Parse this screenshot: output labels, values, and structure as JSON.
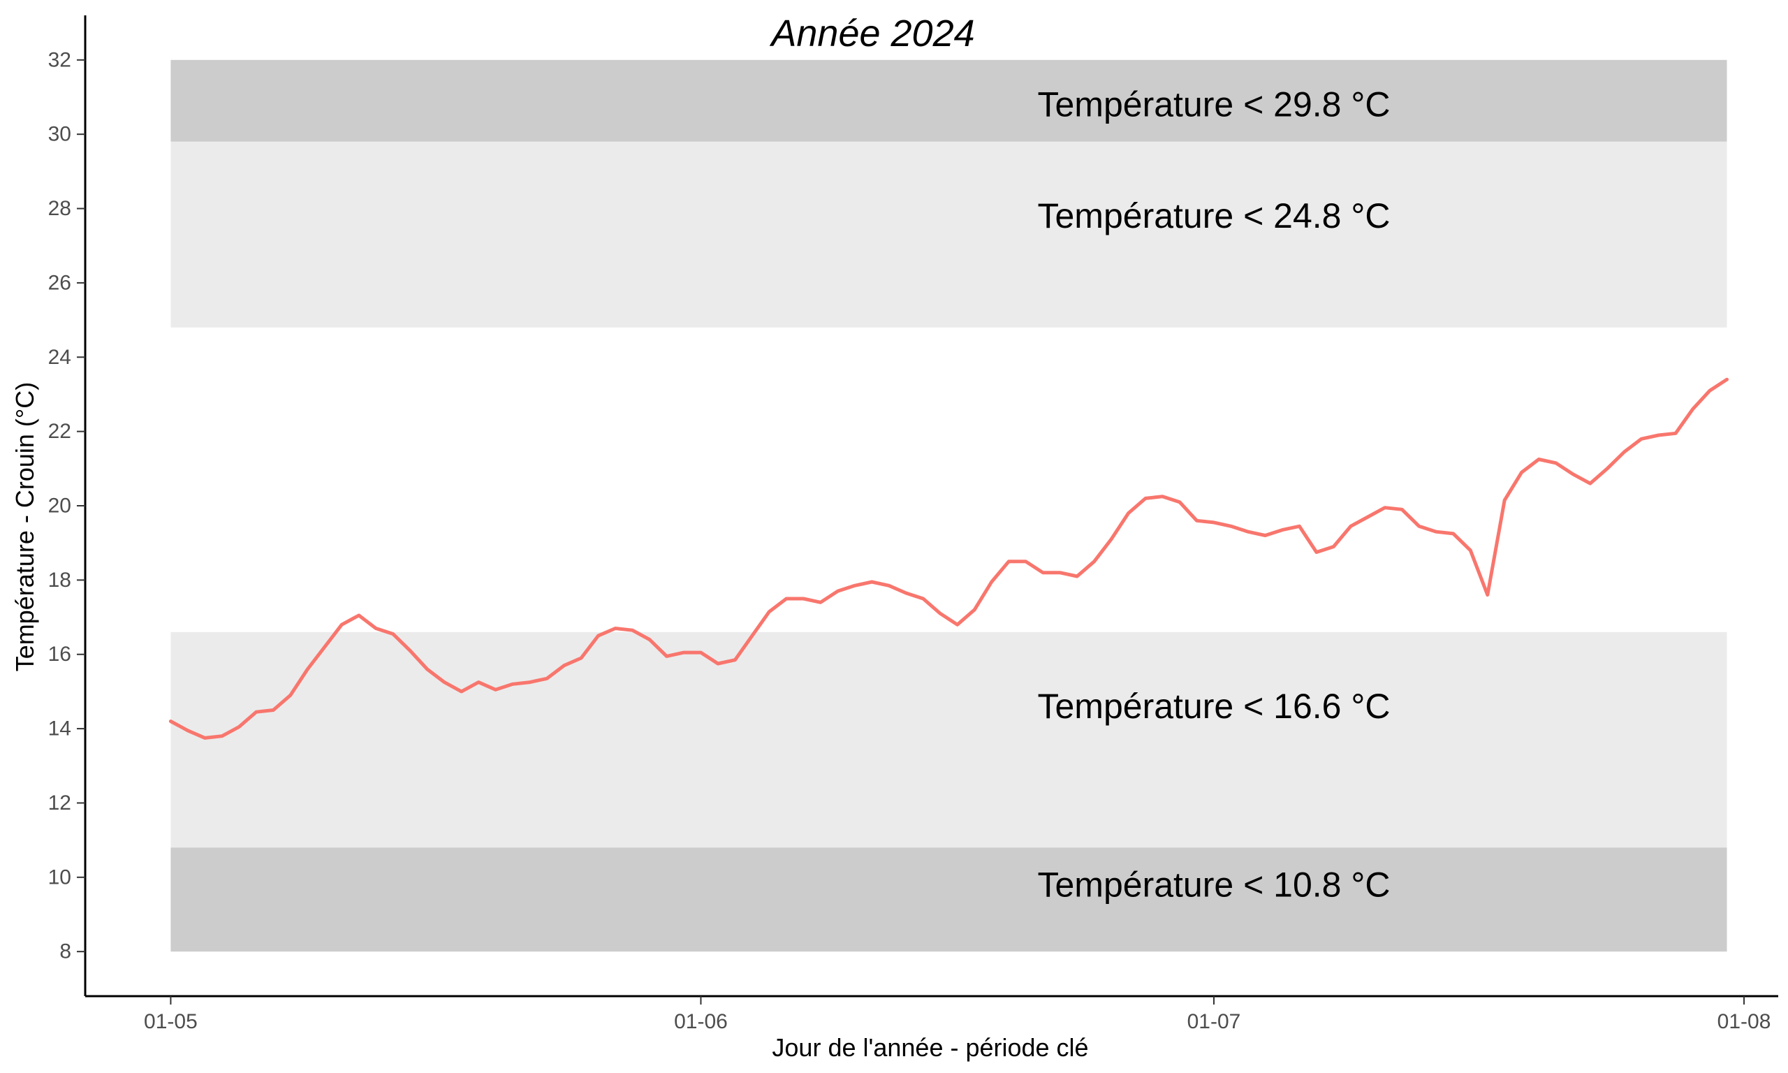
{
  "chart_data": {
    "type": "line",
    "title": "Année 2024",
    "xlabel": "Jour de l'année - période clé",
    "ylabel": "Température - Crouin (°C)",
    "xlim": [
      "2024-04-26",
      "2024-08-03"
    ],
    "ylim": [
      6.8,
      33.2
    ],
    "x_ticks": [
      "2024-05-01",
      "2024-06-01",
      "2024-07-01",
      "2024-08-01"
    ],
    "x_tick_labels": [
      "01-05",
      "01-06",
      "01-07",
      "01-08"
    ],
    "y_ticks": [
      8,
      10,
      12,
      14,
      16,
      18,
      20,
      22,
      24,
      26,
      28,
      30,
      32
    ],
    "grid": false,
    "legend": "none",
    "bands": [
      {
        "ymin": 29.8,
        "ymax": 32,
        "color": "#cccccc",
        "label": "Température < 29.8 °C",
        "label_y": 30.8
      },
      {
        "ymin": 24.8,
        "ymax": 29.8,
        "color": "#ebebeb",
        "label": "Température < 24.8 °C",
        "label_y": 27.8
      },
      {
        "ymin": 10.8,
        "ymax": 16.6,
        "color": "#ebebeb",
        "label": "Température < 16.6 °C",
        "label_y": 14.6
      },
      {
        "ymin": 8,
        "ymax": 10.8,
        "color": "#cccccc",
        "label": "Température < 10.8 °C",
        "label_y": 9.8
      }
    ],
    "band_range": [
      "2024-05-01",
      "2024-07-31"
    ],
    "band_label_x": "2024-07-01",
    "series": [
      {
        "color": "#f8766d",
        "x": [
          "2024-05-01",
          "2024-05-02",
          "2024-05-03",
          "2024-05-04",
          "2024-05-05",
          "2024-05-06",
          "2024-05-07",
          "2024-05-08",
          "2024-05-09",
          "2024-05-10",
          "2024-05-11",
          "2024-05-12",
          "2024-05-13",
          "2024-05-14",
          "2024-05-15",
          "2024-05-16",
          "2024-05-17",
          "2024-05-18",
          "2024-05-19",
          "2024-05-20",
          "2024-05-21",
          "2024-05-22",
          "2024-05-23",
          "2024-05-24",
          "2024-05-25",
          "2024-05-26",
          "2024-05-27",
          "2024-05-28",
          "2024-05-29",
          "2024-05-30",
          "2024-05-31",
          "2024-06-01",
          "2024-06-02",
          "2024-06-03",
          "2024-06-04",
          "2024-06-05",
          "2024-06-06",
          "2024-06-07",
          "2024-06-08",
          "2024-06-09",
          "2024-06-10",
          "2024-06-11",
          "2024-06-12",
          "2024-06-13",
          "2024-06-14",
          "2024-06-15",
          "2024-06-16",
          "2024-06-17",
          "2024-06-18",
          "2024-06-19",
          "2024-06-20",
          "2024-06-21",
          "2024-06-22",
          "2024-06-23",
          "2024-06-24",
          "2024-06-25",
          "2024-06-26",
          "2024-06-27",
          "2024-06-28",
          "2024-06-29",
          "2024-06-30",
          "2024-07-01",
          "2024-07-02",
          "2024-07-03",
          "2024-07-04",
          "2024-07-05",
          "2024-07-06",
          "2024-07-07",
          "2024-07-08",
          "2024-07-09",
          "2024-07-10",
          "2024-07-11",
          "2024-07-12",
          "2024-07-13",
          "2024-07-14",
          "2024-07-15",
          "2024-07-16",
          "2024-07-17",
          "2024-07-18",
          "2024-07-19",
          "2024-07-20",
          "2024-07-21",
          "2024-07-22",
          "2024-07-23",
          "2024-07-24",
          "2024-07-25",
          "2024-07-26",
          "2024-07-27",
          "2024-07-28",
          "2024-07-29",
          "2024-07-30",
          "2024-07-31"
        ],
        "y": [
          14.2,
          13.95,
          13.75,
          13.8,
          14.05,
          14.45,
          14.5,
          14.9,
          15.6,
          16.2,
          16.8,
          17.05,
          16.7,
          16.55,
          16.1,
          15.6,
          15.25,
          15.0,
          15.25,
          15.05,
          15.2,
          15.25,
          15.35,
          15.7,
          15.9,
          16.5,
          16.7,
          16.65,
          16.4,
          15.95,
          16.05,
          16.05,
          15.75,
          15.85,
          16.5,
          17.15,
          17.5,
          17.5,
          17.4,
          17.7,
          17.85,
          17.95,
          17.85,
          17.65,
          17.5,
          17.1,
          16.8,
          17.2,
          17.95,
          18.5,
          18.5,
          18.2,
          18.2,
          18.1,
          18.5,
          19.1,
          19.8,
          20.2,
          20.25,
          20.1,
          19.6,
          19.55,
          19.45,
          19.3,
          19.2,
          19.35,
          19.45,
          18.75,
          18.9,
          19.45,
          19.7,
          19.95,
          19.9,
          19.45,
          19.3,
          19.25,
          18.8,
          17.6,
          20.15,
          20.9,
          21.25,
          21.15,
          20.85,
          20.6,
          21.0,
          21.45,
          21.8,
          21.9,
          21.95,
          22.6,
          23.1,
          23.4
        ]
      }
    ]
  }
}
